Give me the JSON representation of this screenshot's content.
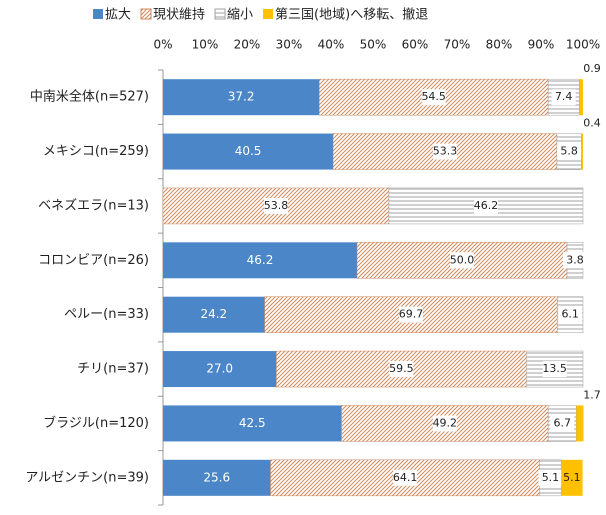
{
  "chart_data": {
    "type": "stacked-bar-horizontal",
    "categories": [
      "中南米全体(n=527)",
      "メキシコ(n=259)",
      "ベネズエラ(n=13)",
      "コロンビア(n=26)",
      "ペルー(n=33)",
      "チリ(n=37)",
      "ブラジル(n=120)",
      "アルゼンチン(n=39)"
    ],
    "series": [
      {
        "name": "拡大",
        "color": "#4a86c8",
        "fill": "solid",
        "values": [
          37.2,
          40.5,
          null,
          46.2,
          24.2,
          27.0,
          42.5,
          25.6
        ],
        "value_labels": [
          "37.2",
          "40.5",
          null,
          "46.2",
          "24.2",
          "27.0",
          "42.5",
          "25.6"
        ]
      },
      {
        "name": "現状維持",
        "color": "#d0895c",
        "fill": "diagonal",
        "values": [
          54.5,
          53.3,
          53.8,
          50.0,
          69.7,
          59.5,
          49.2,
          64.1
        ],
        "value_labels": [
          "54.5",
          "53.3",
          "53.8",
          "50.0",
          "69.7",
          "59.5",
          "49.2",
          "64.1"
        ]
      },
      {
        "name": "縮小",
        "color": "#a0a0a0",
        "fill": "horizontal",
        "values": [
          7.4,
          5.8,
          46.2,
          3.8,
          6.1,
          13.5,
          6.7,
          5.1
        ],
        "value_labels": [
          "7.4",
          "5.8",
          "46.2",
          "3.8",
          "6.1",
          "13.5",
          "6.7",
          "5.1"
        ]
      },
      {
        "name": "第三国(地域)へ移転、撤退",
        "color": "#ffc000",
        "fill": "solid",
        "values": [
          0.9,
          0.4,
          null,
          null,
          null,
          null,
          1.7,
          5.1
        ],
        "value_labels": [
          "0.9",
          "0.4",
          null,
          null,
          null,
          null,
          "1.7",
          "5.1"
        ]
      }
    ],
    "xlim": [
      0,
      100
    ],
    "xticks": [
      {
        "value": 0,
        "label": "0%"
      },
      {
        "value": 10,
        "label": "10%"
      },
      {
        "value": 20,
        "label": "20%"
      },
      {
        "value": 30,
        "label": "30%"
      },
      {
        "value": 40,
        "label": "40%"
      },
      {
        "value": 50,
        "label": "50%"
      },
      {
        "value": 60,
        "label": "60%"
      },
      {
        "value": 70,
        "label": "70%"
      },
      {
        "value": 80,
        "label": "80%"
      },
      {
        "value": 90,
        "label": "90%"
      },
      {
        "value": 100,
        "label": "100%"
      }
    ],
    "legend": "top"
  }
}
